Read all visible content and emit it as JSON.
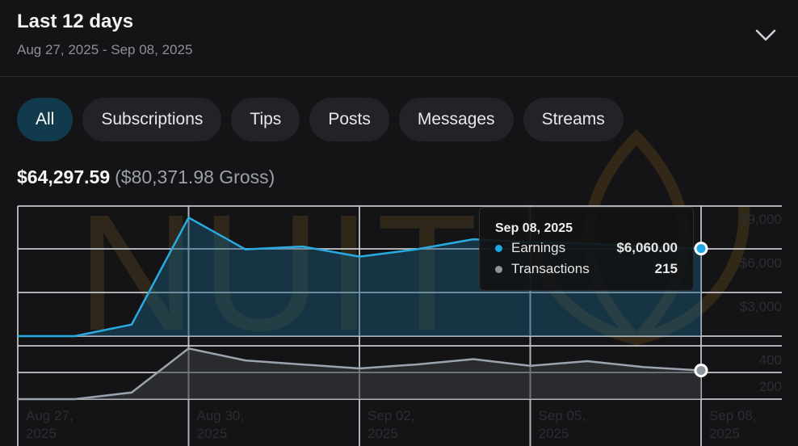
{
  "header": {
    "title": "Last 12 days",
    "date_range": "Aug 27, 2025 - Sep 08, 2025",
    "expand_icon": "chevron-down-icon"
  },
  "tabs": [
    {
      "label": "All",
      "active": true
    },
    {
      "label": "Subscriptions",
      "active": false
    },
    {
      "label": "Tips",
      "active": false
    },
    {
      "label": "Posts",
      "active": false
    },
    {
      "label": "Messages",
      "active": false
    },
    {
      "label": "Streams",
      "active": false
    }
  ],
  "summary": {
    "net": "$64,297.59",
    "gross": "($80,371.98 Gross)"
  },
  "watermark": "NUIT",
  "colors": {
    "earnings": "#29abe2",
    "transactions": "#9aa3ae",
    "active_tab": "#113a4c",
    "background": "#141416"
  },
  "tooltip": {
    "date": "Sep 08, 2025",
    "rows": [
      {
        "label": "Earnings",
        "value": "$6,060.00",
        "color": "#1fa7e6"
      },
      {
        "label": "Transactions",
        "value": "215",
        "color": "#8e949c"
      }
    ]
  },
  "chart_data": [
    {
      "type": "area",
      "title": "Earnings",
      "x": [
        "Aug 27, 2025",
        "Aug 28, 2025",
        "Aug 29, 2025",
        "Aug 30, 2025",
        "Aug 31, 2025",
        "Sep 01, 2025",
        "Sep 02, 2025",
        "Sep 03, 2025",
        "Sep 04, 2025",
        "Sep 05, 2025",
        "Sep 06, 2025",
        "Sep 07, 2025",
        "Sep 08, 2025"
      ],
      "series": [
        {
          "name": "Earnings",
          "values": [
            0,
            0,
            800,
            8200,
            6000,
            6200,
            5500,
            6000,
            6700,
            6500,
            6400,
            6200,
            6060
          ]
        }
      ],
      "y_ticks": [
        "$3,000",
        "$6,000",
        "$9,000"
      ],
      "x_ticks": [
        "Aug 27, 2025",
        "Aug 30, 2025",
        "Sep 02, 2025",
        "Sep 05, 2025",
        "Sep 08, 2025"
      ],
      "ylim": [
        0,
        9000
      ],
      "grid": true,
      "ylabel_position": "right"
    },
    {
      "type": "area",
      "title": "Transactions",
      "x": [
        "Aug 27, 2025",
        "Aug 28, 2025",
        "Aug 29, 2025",
        "Aug 30, 2025",
        "Aug 31, 2025",
        "Sep 01, 2025",
        "Sep 02, 2025",
        "Sep 03, 2025",
        "Sep 04, 2025",
        "Sep 05, 2025",
        "Sep 06, 2025",
        "Sep 07, 2025",
        "Sep 08, 2025"
      ],
      "series": [
        {
          "name": "Transactions",
          "values": [
            0,
            0,
            50,
            380,
            290,
            260,
            230,
            260,
            300,
            250,
            285,
            240,
            215
          ]
        }
      ],
      "y_ticks": [
        "200",
        "400"
      ],
      "ylim": [
        0,
        400
      ],
      "grid": true,
      "ylabel_position": "right"
    }
  ]
}
